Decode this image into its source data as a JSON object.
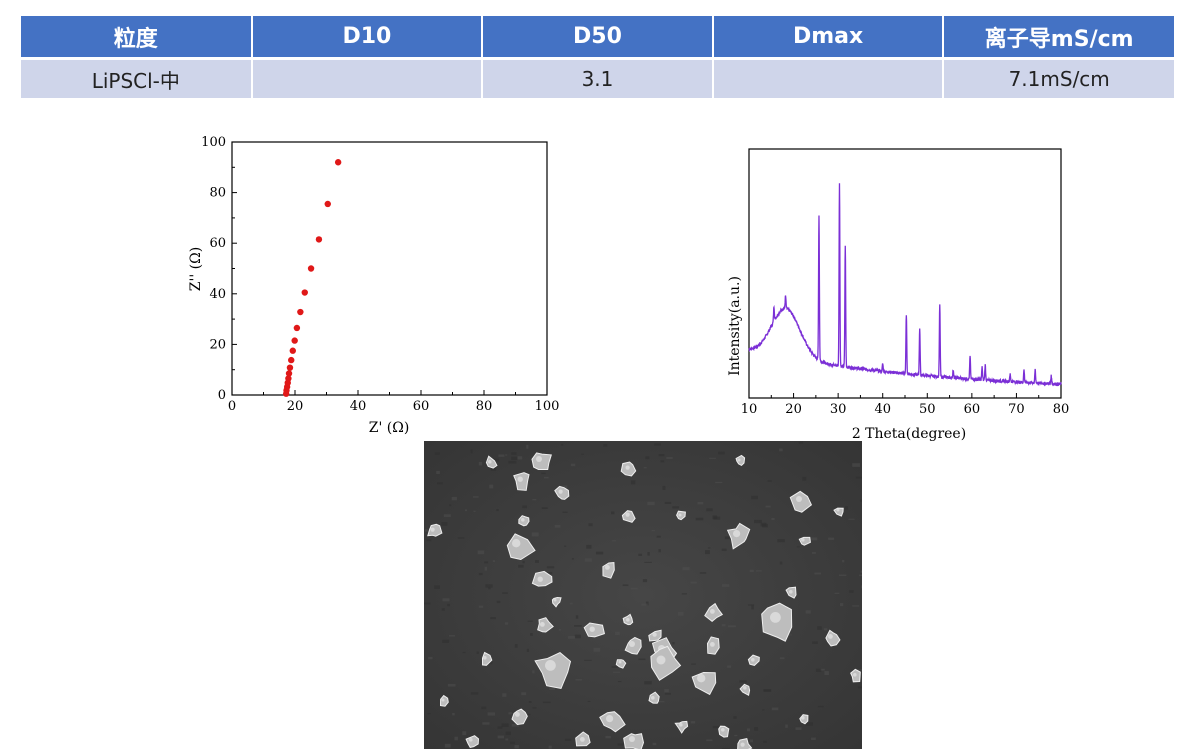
{
  "table": {
    "headers": [
      "粒度",
      "D10",
      "D50",
      "Dmax",
      "离子导mS/cm"
    ],
    "rows": [
      [
        "LiPSCl-中",
        "",
        "3.1",
        "",
        "7.1mS/cm"
      ]
    ]
  },
  "colors": {
    "header_bg": "#4472c4",
    "row_bg": "#cfd5ea",
    "eis_points": "#e01818",
    "xrd_line": "#7b2fd6"
  },
  "chart_data": [
    {
      "type": "scatter",
      "xlabel": "Z' (Ω)",
      "ylabel": "Z'' (Ω)",
      "xlim": [
        0,
        100
      ],
      "ylim": [
        0,
        100
      ],
      "xticks": [
        0,
        20,
        40,
        60,
        80,
        100
      ],
      "yticks": [
        0,
        20,
        40,
        60,
        80,
        100
      ],
      "series": [
        {
          "points": [
            [
              17.2,
              0.5
            ],
            [
              17.3,
              1.8
            ],
            [
              17.5,
              3.2
            ],
            [
              17.7,
              4.8
            ],
            [
              17.9,
              6.5
            ],
            [
              18.1,
              8.5
            ],
            [
              18.4,
              10.8
            ],
            [
              18.8,
              13.8
            ],
            [
              19.3,
              17.5
            ],
            [
              19.9,
              21.5
            ],
            [
              20.6,
              26.5
            ],
            [
              21.7,
              32.8
            ],
            [
              23.1,
              40.5
            ],
            [
              25.1,
              50.0
            ],
            [
              27.6,
              61.5
            ],
            [
              30.4,
              75.5
            ],
            [
              33.7,
              92.0
            ]
          ]
        }
      ],
      "grid": false
    },
    {
      "type": "line",
      "xlabel": "2 Theta(degree)",
      "ylabel": "Intensity(a.u.)",
      "xlim": [
        10,
        80
      ],
      "xticks": [
        10,
        20,
        30,
        40,
        50,
        60,
        70,
        80
      ],
      "yticks_shown": false,
      "background_hump": {
        "center": 18.3,
        "width": 4.5,
        "height": 0.36
      },
      "peaks": [
        {
          "x": 15.6,
          "h": 0.06
        },
        {
          "x": 18.2,
          "h": 0.05
        },
        {
          "x": 25.7,
          "h": 0.58
        },
        {
          "x": 30.3,
          "h": 0.74
        },
        {
          "x": 31.6,
          "h": 0.49
        },
        {
          "x": 40.0,
          "h": 0.03
        },
        {
          "x": 45.3,
          "h": 0.24
        },
        {
          "x": 48.3,
          "h": 0.19
        },
        {
          "x": 52.8,
          "h": 0.29
        },
        {
          "x": 55.8,
          "h": 0.03
        },
        {
          "x": 59.6,
          "h": 0.09
        },
        {
          "x": 62.3,
          "h": 0.05
        },
        {
          "x": 63.0,
          "h": 0.06
        },
        {
          "x": 68.6,
          "h": 0.03
        },
        {
          "x": 71.7,
          "h": 0.05
        },
        {
          "x": 74.2,
          "h": 0.05
        },
        {
          "x": 77.8,
          "h": 0.03
        }
      ],
      "grid": false
    }
  ],
  "sem_image": {
    "description_icon": "sem-micrograph"
  }
}
